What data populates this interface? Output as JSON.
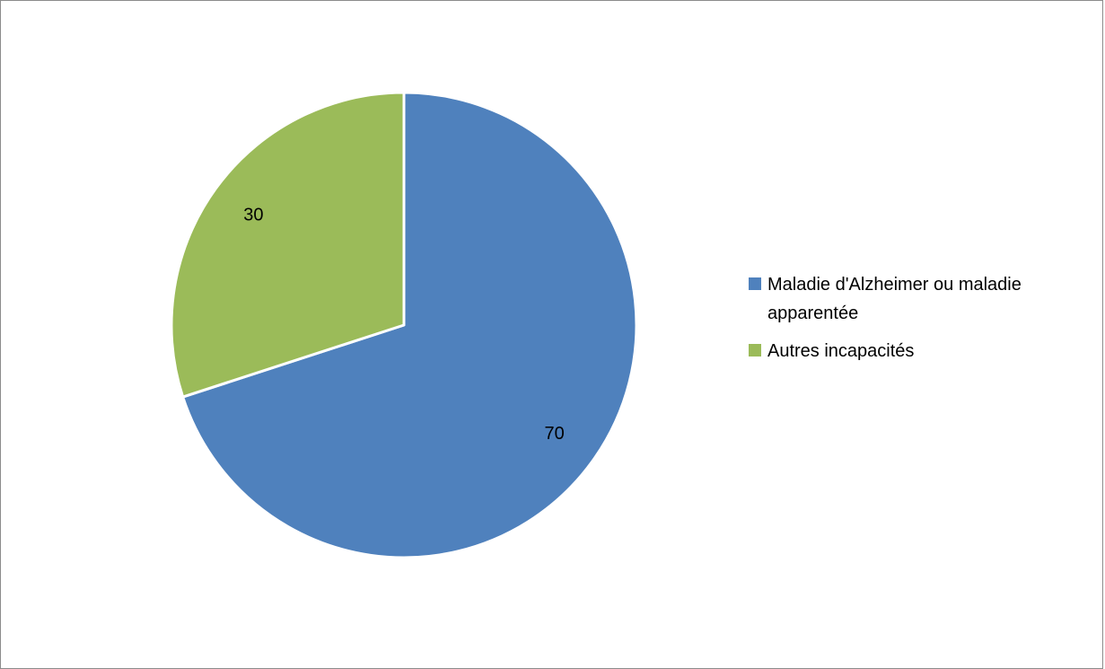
{
  "chart_data": {
    "type": "pie",
    "categories": [
      "Maladie d'Alzheimer ou maladie apparentée",
      "Autres incapacités"
    ],
    "values": [
      70,
      30
    ],
    "data_labels": [
      "70",
      "30"
    ],
    "colors": [
      "#4f81bd",
      "#9bbb59"
    ],
    "start_angle_deg": 0,
    "direction": "clockwise",
    "legend_position": "right",
    "title": ""
  },
  "legend": {
    "items": [
      {
        "label": "Maladie d'Alzheimer ou maladie apparentée",
        "color": "#4f81bd"
      },
      {
        "label": "Autres incapacités",
        "color": "#9bbb59"
      }
    ]
  }
}
